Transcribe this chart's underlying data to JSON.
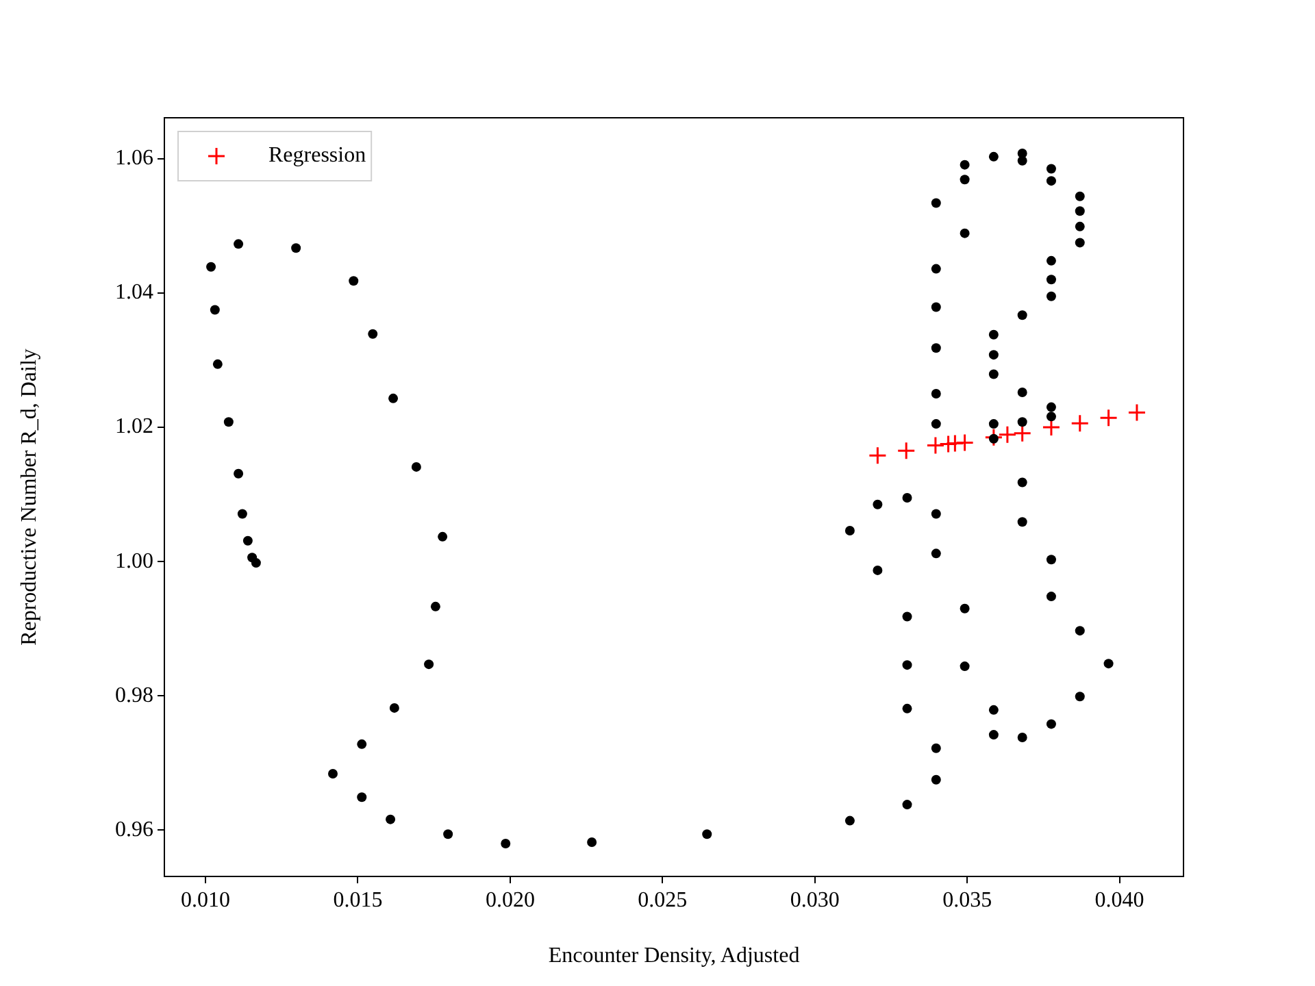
{
  "chart_data": {
    "type": "scatter",
    "xlabel": "Encounter Density, Adjusted",
    "ylabel": "Reproductive Number R_d, Daily",
    "xlim": [
      0.00865,
      0.0421
    ],
    "ylim": [
      0.9531,
      1.0661
    ],
    "xticks": [
      {
        "value": 0.01,
        "label": "0.010"
      },
      0.015,
      {
        "value": 0.02,
        "label": "0.020"
      },
      0.025,
      {
        "value": 0.03,
        "label": "0.030"
      },
      0.035,
      {
        "value": 0.04,
        "label": "0.040"
      }
    ],
    "yticks": [
      0.96,
      0.98,
      {
        "value": 1,
        "label": "1.00"
      },
      1.02,
      1.04,
      1.06
    ],
    "grid": false,
    "legend": "top left",
    "series": [
      {
        "color": "#000000",
        "marker": "circle",
        "x": [
          0.01018,
          0.01108,
          0.01297,
          0.01486,
          0.01549,
          0.01616,
          0.01692,
          0.01778,
          0.01755,
          0.01733,
          0.0162,
          0.01513,
          0.01418,
          0.01513,
          0.01607,
          0.01796,
          0.01985,
          0.02268,
          0.02646,
          0.01031,
          0.0104,
          0.01076,
          0.01108,
          0.01121,
          0.01139,
          0.01153,
          0.01166,
          0.03398,
          0.03492,
          0.03492,
          0.03587,
          0.03681,
          0.03681,
          0.03776,
          0.03776,
          0.0387,
          0.0387,
          0.0387,
          0.0387,
          0.03492,
          0.03398,
          0.03398,
          0.03398,
          0.03398,
          0.03398,
          0.03776,
          0.03776,
          0.03776,
          0.03681,
          0.03587,
          0.03587,
          0.03587,
          0.03681,
          0.03681,
          0.03587,
          0.03587,
          0.03776,
          0.03776,
          0.03681,
          0.03681,
          0.03206,
          0.03303,
          0.03398,
          0.03115,
          0.03398,
          0.03206,
          0.03776,
          0.03776,
          0.03303,
          0.03492,
          0.0387,
          0.03964,
          0.03303,
          0.03492,
          0.0387,
          0.03303,
          0.03587,
          0.03776,
          0.03587,
          0.03681,
          0.03398,
          0.03398,
          0.03303,
          0.03115
        ],
        "values": [
          1.0439,
          1.0473,
          1.0467,
          1.0418,
          1.0339,
          1.0243,
          1.0141,
          1.0037,
          0.9933,
          0.9847,
          0.9782,
          0.9728,
          0.9684,
          0.9649,
          0.9616,
          0.9594,
          0.958,
          0.9582,
          0.9594,
          1.0375,
          1.0294,
          1.0208,
          1.0131,
          1.0071,
          1.0031,
          1.0006,
          0.9998,
          1.0534,
          1.0591,
          1.0569,
          1.0603,
          1.0608,
          1.0597,
          1.0585,
          1.0567,
          1.0544,
          1.0522,
          1.0499,
          1.0475,
          1.0489,
          1.0436,
          1.0379,
          1.0318,
          1.025,
          1.0205,
          1.0448,
          1.042,
          1.0395,
          1.0367,
          1.0338,
          1.0308,
          1.0279,
          1.0252,
          1.0208,
          1.0205,
          1.0183,
          1.023,
          1.0216,
          1.0118,
          1.0059,
          1.0085,
          1.0095,
          1.0071,
          1.0046,
          1.0012,
          0.9987,
          1.0003,
          0.9948,
          0.9918,
          0.993,
          0.9897,
          0.9848,
          0.9846,
          0.9844,
          0.9799,
          0.9781,
          0.9779,
          0.9758,
          0.9742,
          0.9738,
          0.9722,
          0.9675,
          0.9638,
          0.9614
        ]
      },
      {
        "name": "Regression",
        "color": "#ff0000",
        "marker": "cross",
        "x": [
          0.03206,
          0.033,
          0.03396,
          0.03438,
          0.0346,
          0.03492,
          0.03587,
          0.03632,
          0.03681,
          0.03776,
          0.0387,
          0.03964,
          0.04057
        ],
        "values": [
          1.0158,
          1.0165,
          1.0173,
          1.0175,
          1.0176,
          1.0177,
          1.0185,
          1.0189,
          1.0191,
          1.02,
          1.0206,
          1.0214,
          1.0222
        ]
      }
    ]
  }
}
